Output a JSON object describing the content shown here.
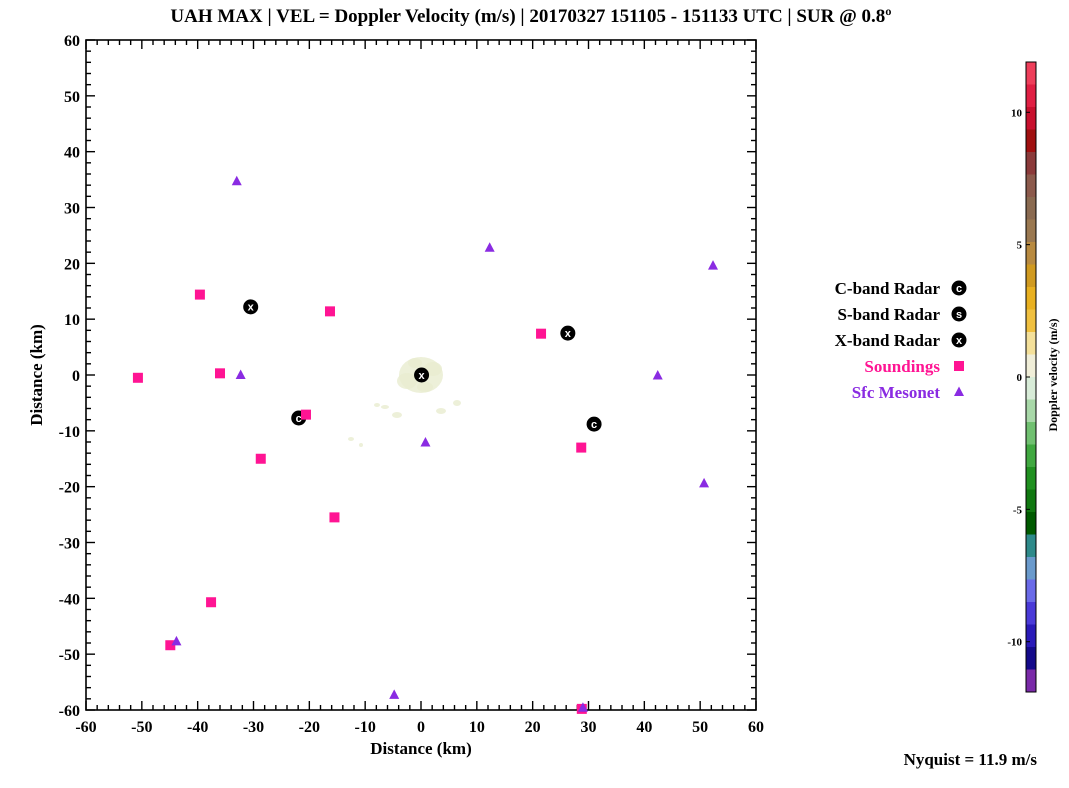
{
  "chart_data": {
    "type": "scatter",
    "title": "UAH MAX | VEL = Doppler Velocity (m/s) | 20170327 151105 - 151133 UTC | SUR @ 0.8º",
    "xlabel": "Distance (km)",
    "ylabel": "Distance (km)",
    "xlim": [
      -60,
      60
    ],
    "ylim": [
      -60,
      60
    ],
    "x_ticks": [
      -60,
      -50,
      -40,
      -30,
      -20,
      -10,
      0,
      10,
      20,
      30,
      40,
      50,
      60
    ],
    "y_ticks": [
      60,
      50,
      40,
      30,
      20,
      10,
      0,
      -10,
      -20,
      -30,
      -40,
      -50,
      -60
    ],
    "grid": false,
    "legend_position": "right",
    "series": [
      {
        "name": "C-band Radar",
        "marker": "C",
        "color": "#000000",
        "points": [
          {
            "x": -21.9,
            "y": -7.7
          },
          {
            "x": 31.0,
            "y": -8.8
          }
        ]
      },
      {
        "name": "S-band Radar",
        "marker": "S",
        "color": "#000000",
        "points": []
      },
      {
        "name": "X-band Radar",
        "marker": "X",
        "color": "#000000",
        "points": [
          {
            "x": -30.5,
            "y": 12.2
          },
          {
            "x": 26.3,
            "y": 7.5
          },
          {
            "x": 0.1,
            "y": 0.0
          }
        ]
      },
      {
        "name": "Soundings",
        "marker": "square",
        "color": "#ff1493",
        "points": [
          {
            "x": -39.6,
            "y": 14.4
          },
          {
            "x": -16.3,
            "y": 11.4
          },
          {
            "x": 21.5,
            "y": 7.4
          },
          {
            "x": -50.7,
            "y": -0.5
          },
          {
            "x": -36.0,
            "y": 0.3
          },
          {
            "x": -20.6,
            "y": -7.1
          },
          {
            "x": 28.7,
            "y": -13.0
          },
          {
            "x": -28.7,
            "y": -15.0
          },
          {
            "x": -15.5,
            "y": -25.5
          },
          {
            "x": -37.6,
            "y": -40.7
          },
          {
            "x": -44.9,
            "y": -48.4
          },
          {
            "x": 28.8,
            "y": -59.8
          }
        ]
      },
      {
        "name": "Sfc Mesonet",
        "marker": "triangle",
        "color": "#8a2be2",
        "points": [
          {
            "x": -33.0,
            "y": 34.7
          },
          {
            "x": 12.3,
            "y": 22.8
          },
          {
            "x": 52.3,
            "y": 19.6
          },
          {
            "x": -32.3,
            "y": 0.0
          },
          {
            "x": 42.4,
            "y": -0.1
          },
          {
            "x": 0.8,
            "y": -12.1
          },
          {
            "x": 50.7,
            "y": -19.4
          },
          {
            "x": -43.8,
            "y": -47.7
          },
          {
            "x": -4.8,
            "y": -57.3
          },
          {
            "x": 29.0,
            "y": -59.6
          }
        ]
      }
    ],
    "colorbar": {
      "label": "Doppler velocity (m/s)",
      "range": [
        -11.9,
        11.9
      ],
      "ticks": [
        10,
        5,
        0,
        -5,
        -10
      ],
      "colors_top_to_bottom": [
        "#ee3e5a",
        "#e01f43",
        "#c8102e",
        "#a01010",
        "#8b3a3a",
        "#8c5a4c",
        "#8a6a50",
        "#9a7850",
        "#b88a40",
        "#d09a20",
        "#e8b020",
        "#f0c040",
        "#f4e09a",
        "#f0eed8",
        "#d8ecd8",
        "#a8d8a8",
        "#70c070",
        "#40a840",
        "#209020",
        "#107810",
        "#005a00",
        "#2e8a8a",
        "#6a9acc",
        "#6a6ae8",
        "#4a3ad8",
        "#2a1ab8",
        "#140a8a",
        "#7a2aa8"
      ]
    },
    "nyquist_text": "Nyquist = 11.9 m/s"
  }
}
